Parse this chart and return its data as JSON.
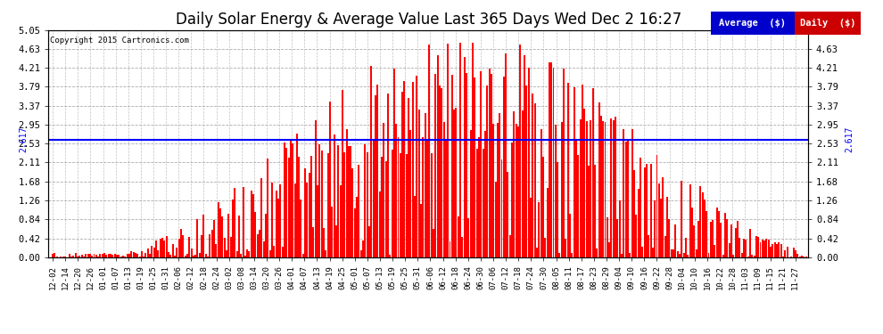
{
  "title": "Daily Solar Energy & Average Value Last 365 Days Wed Dec 2 16:27",
  "copyright": "Copyright 2015 Cartronics.com",
  "avg_value": 2.617,
  "y_max": 5.05,
  "y_ticks": [
    0.0,
    0.42,
    0.84,
    1.26,
    1.68,
    2.11,
    2.53,
    2.95,
    3.37,
    3.79,
    4.21,
    4.63,
    5.05
  ],
  "bar_color": "#FF0000",
  "avg_line_color": "#0000FF",
  "background_color": "#FFFFFF",
  "plot_bg_color": "#FFFFFF",
  "grid_color": "#999999",
  "title_fontsize": 12,
  "legend_avg_bg": "#0000CC",
  "legend_daily_bg": "#CC0000",
  "legend_text_color": "#FFFFFF",
  "x_labels": [
    "12-02",
    "12-14",
    "12-20",
    "12-26",
    "01-01",
    "01-07",
    "01-13",
    "01-19",
    "01-25",
    "01-31",
    "02-06",
    "02-12",
    "02-18",
    "02-24",
    "03-02",
    "03-08",
    "03-14",
    "03-20",
    "03-26",
    "04-01",
    "04-07",
    "04-13",
    "04-19",
    "04-25",
    "05-01",
    "05-07",
    "05-13",
    "05-19",
    "05-25",
    "05-31",
    "06-06",
    "06-12",
    "06-18",
    "06-24",
    "06-30",
    "07-06",
    "07-12",
    "07-18",
    "07-24",
    "07-30",
    "08-05",
    "08-11",
    "08-17",
    "08-23",
    "08-29",
    "09-04",
    "09-10",
    "09-16",
    "09-22",
    "09-28",
    "10-04",
    "10-10",
    "10-16",
    "10-22",
    "10-28",
    "11-03",
    "11-09",
    "11-15",
    "11-21",
    "11-27"
  ],
  "num_bars": 365,
  "seed": 42
}
